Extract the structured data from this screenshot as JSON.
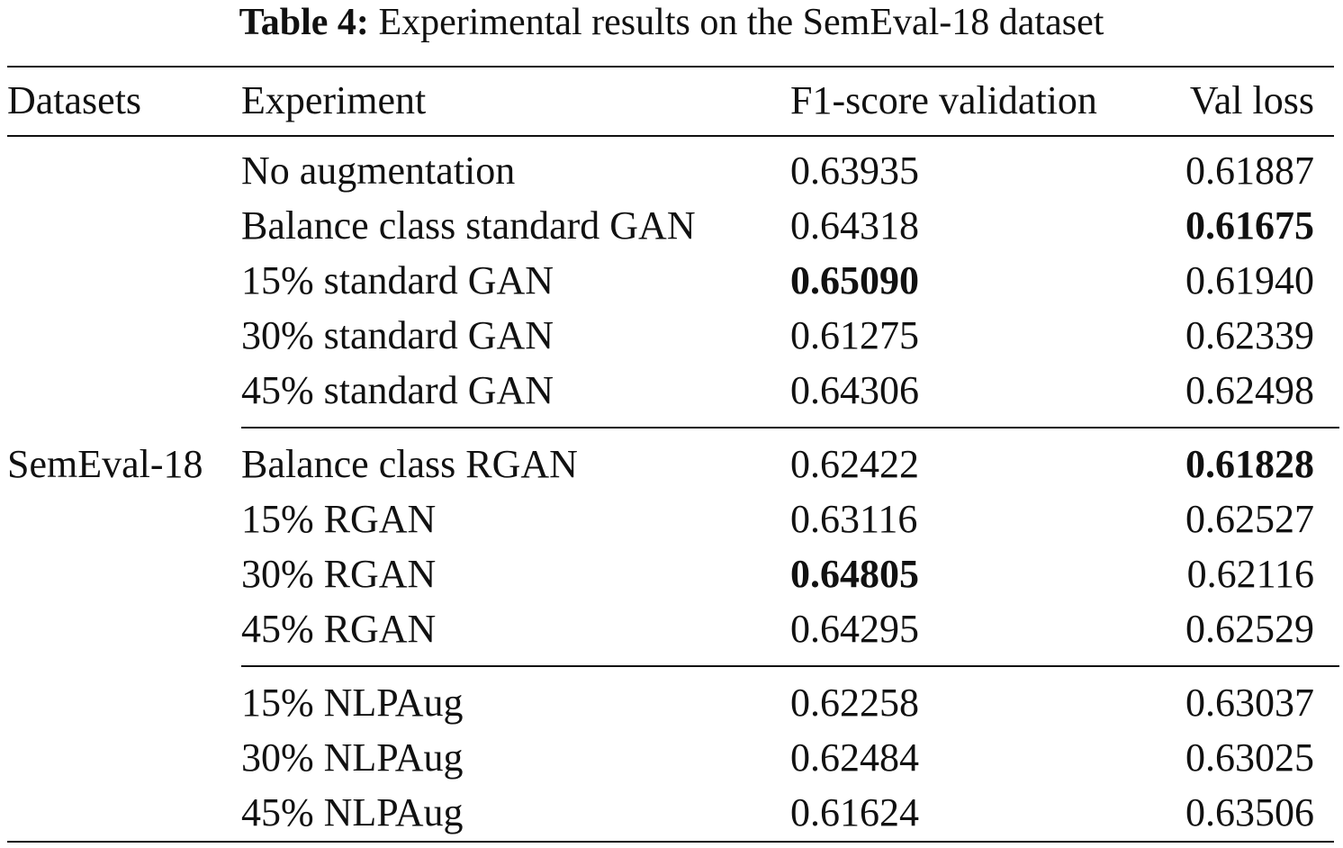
{
  "caption": {
    "label": "Table 4:",
    "text": "Experimental results on the SemEval-18 dataset"
  },
  "headers": {
    "datasets": "Datasets",
    "experiment": "Experiment",
    "f1": "F1-score validation",
    "loss": "Val loss"
  },
  "dataset_name": "SemEval-18",
  "rows": [
    {
      "experiment": "No augmentation",
      "f1": "0.63935",
      "loss": "0.61887",
      "f1_bold": false,
      "loss_bold": false
    },
    {
      "experiment": "Balance class standard GAN",
      "f1": "0.64318",
      "loss": "0.61675",
      "f1_bold": false,
      "loss_bold": true
    },
    {
      "experiment": "15% standard GAN",
      "f1": "0.65090",
      "loss": "0.61940",
      "f1_bold": true,
      "loss_bold": false
    },
    {
      "experiment": "30% standard GAN",
      "f1": "0.61275",
      "loss": "0.62339",
      "f1_bold": false,
      "loss_bold": false
    },
    {
      "experiment": "45% standard GAN",
      "f1": "0.64306",
      "loss": "0.62498",
      "f1_bold": false,
      "loss_bold": false
    },
    {
      "experiment": "Balance class RGAN",
      "f1": "0.62422",
      "loss": "0.61828",
      "f1_bold": false,
      "loss_bold": true
    },
    {
      "experiment": "15% RGAN",
      "f1": "0.63116",
      "loss": "0.62527",
      "f1_bold": false,
      "loss_bold": false
    },
    {
      "experiment": "30% RGAN",
      "f1": "0.64805",
      "loss": "0.62116",
      "f1_bold": true,
      "loss_bold": false
    },
    {
      "experiment": "45% RGAN",
      "f1": "0.64295",
      "loss": "0.62529",
      "f1_bold": false,
      "loss_bold": false
    },
    {
      "experiment": "15% NLPAug",
      "f1": "0.62258",
      "loss": "0.63037",
      "f1_bold": false,
      "loss_bold": false
    },
    {
      "experiment": "30% NLPAug",
      "f1": "0.62484",
      "loss": "0.63025",
      "f1_bold": false,
      "loss_bold": false
    },
    {
      "experiment": "45% NLPAug",
      "f1": "0.61624",
      "loss": "0.63506",
      "f1_bold": false,
      "loss_bold": false
    }
  ]
}
